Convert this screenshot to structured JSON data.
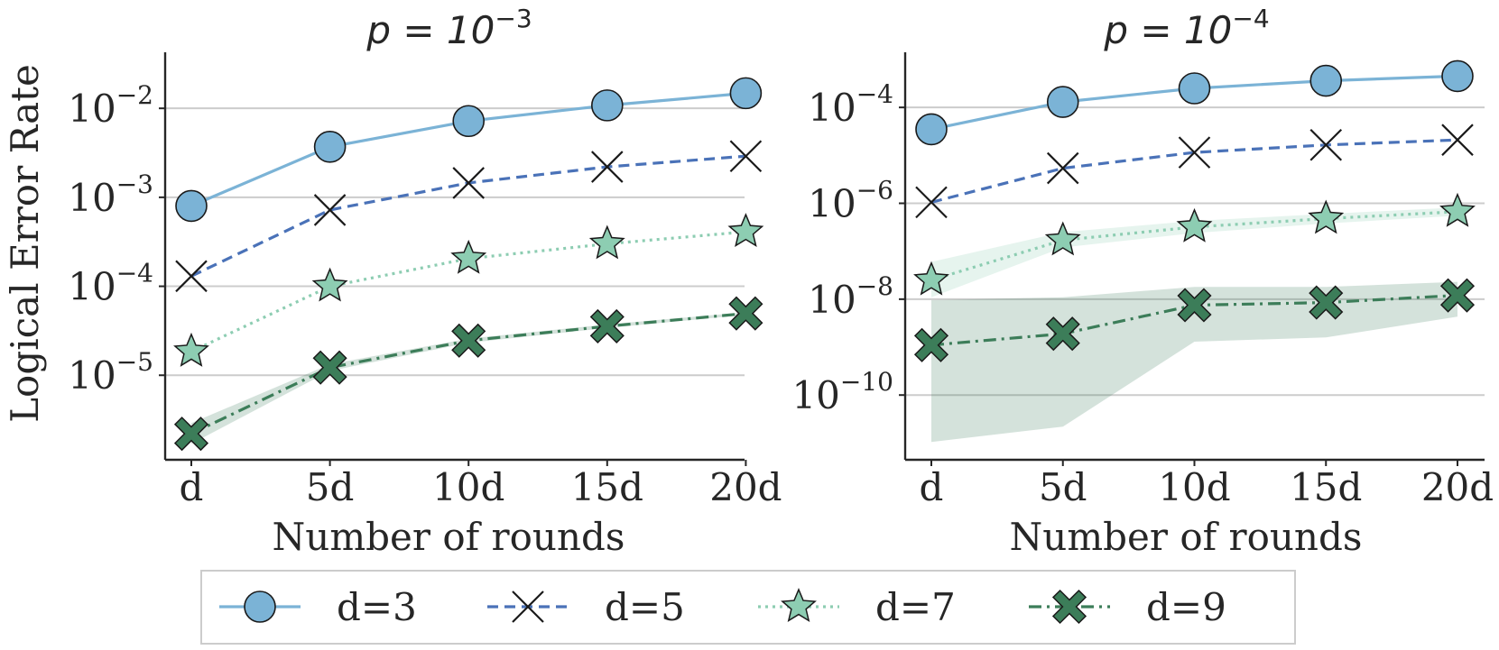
{
  "figure": {
    "ylabel": "Logical Error Rate",
    "xlabel": "Number of rounds",
    "legend_placement": "bottom-center"
  },
  "legend": [
    {
      "label": "d=3",
      "marker": "circle-marker-icon",
      "color": "#7bb3d6",
      "dash": "solid"
    },
    {
      "label": "d=5",
      "marker": "x-marker-icon",
      "color": "#4a72b8",
      "dash": "dashed"
    },
    {
      "label": "d=7",
      "marker": "star-marker-icon",
      "color": "#8dcdb2",
      "dash": "dotted"
    },
    {
      "label": "d=9",
      "marker": "bold-x-marker-icon",
      "color": "#3c7d59",
      "dash": "dashdot"
    }
  ],
  "chart_data": [
    {
      "type": "line",
      "title_base": "p = 10",
      "title_exp": "−3",
      "xlabel": "Number of rounds",
      "ylabel": "Logical Error Rate",
      "yscale": "log",
      "categories": [
        "d",
        "5d",
        "10d",
        "15d",
        "20d"
      ],
      "ylim_log10": [
        -5.95,
        -1.37
      ],
      "grid": "horizontal",
      "yticks": [
        {
          "exp": -2,
          "label": "10",
          "sup": "−2"
        },
        {
          "exp": -3,
          "label": "10",
          "sup": "−3"
        },
        {
          "exp": -4,
          "label": "10",
          "sup": "−4"
        },
        {
          "exp": -5,
          "label": "10",
          "sup": "−5"
        }
      ],
      "series": [
        {
          "name": "d=3",
          "values": [
            0.0008,
            0.0037,
            0.0072,
            0.0108,
            0.0148
          ]
        },
        {
          "name": "d=5",
          "values": [
            0.00013,
            0.00072,
            0.00145,
            0.0022,
            0.0029
          ]
        },
        {
          "name": "d=7",
          "values": [
            1.85e-05,
            0.0001,
            0.000205,
            0.0003,
            0.00041
          ]
        },
        {
          "name": "d=9",
          "values": [
            2.2e-06,
            1.22e-05,
            2.45e-05,
            3.55e-05,
            4.95e-05
          ],
          "band": {
            "low": [
              1.7e-06,
              1.12e-05,
              2.32e-05,
              3.4e-05,
              4.78e-05
            ],
            "high": [
              2.9e-06,
              1.33e-05,
              2.58e-05,
              3.72e-05,
              5.12e-05
            ]
          }
        }
      ]
    },
    {
      "type": "line",
      "title_base": "p = 10",
      "title_exp": "−4",
      "xlabel": "Number of rounds",
      "ylabel": "",
      "yscale": "log",
      "categories": [
        "d",
        "5d",
        "10d",
        "15d",
        "20d"
      ],
      "ylim_log10": [
        -11.35,
        -2.85
      ],
      "grid": "horizontal",
      "yticks": [
        {
          "exp": -4,
          "label": "10",
          "sup": "−4"
        },
        {
          "exp": -6,
          "label": "10",
          "sup": "−6"
        },
        {
          "exp": -8,
          "label": "10",
          "sup": "−8"
        },
        {
          "exp": -10,
          "label": "10",
          "sup": "−10"
        }
      ],
      "series": [
        {
          "name": "d=3",
          "values": [
            3.5e-05,
            0.00013,
            0.00025,
            0.00036,
            0.00045
          ]
        },
        {
          "name": "d=5",
          "values": [
            1.05e-06,
            5.4e-06,
            1.15e-05,
            1.65e-05,
            2.1e-05
          ]
        },
        {
          "name": "d=7",
          "values": [
            2.5e-08,
            1.7e-07,
            3.2e-07,
            4.8e-07,
            6.7e-07
          ],
          "band": {
            "low": [
              1.1e-08,
              1.2e-07,
              2.4e-07,
              3.8e-07,
              5.5e-07
            ],
            "high": [
              6e-08,
              2.5e-07,
              4.3e-07,
              6e-07,
              8.2e-07
            ]
          }
        },
        {
          "name": "d=9",
          "values": [
            1.1e-09,
            1.9e-09,
            7.5e-09,
            8.5e-09,
            1.2e-08
          ],
          "band": {
            "low": [
              1.05e-11,
              2.2e-11,
              1.3e-09,
              1.6e-09,
              4.3e-09
            ],
            "high": [
              9.5e-09,
              1.1e-08,
              1.8e-08,
              1.8e-08,
              2.3e-08
            ]
          }
        }
      ]
    }
  ]
}
